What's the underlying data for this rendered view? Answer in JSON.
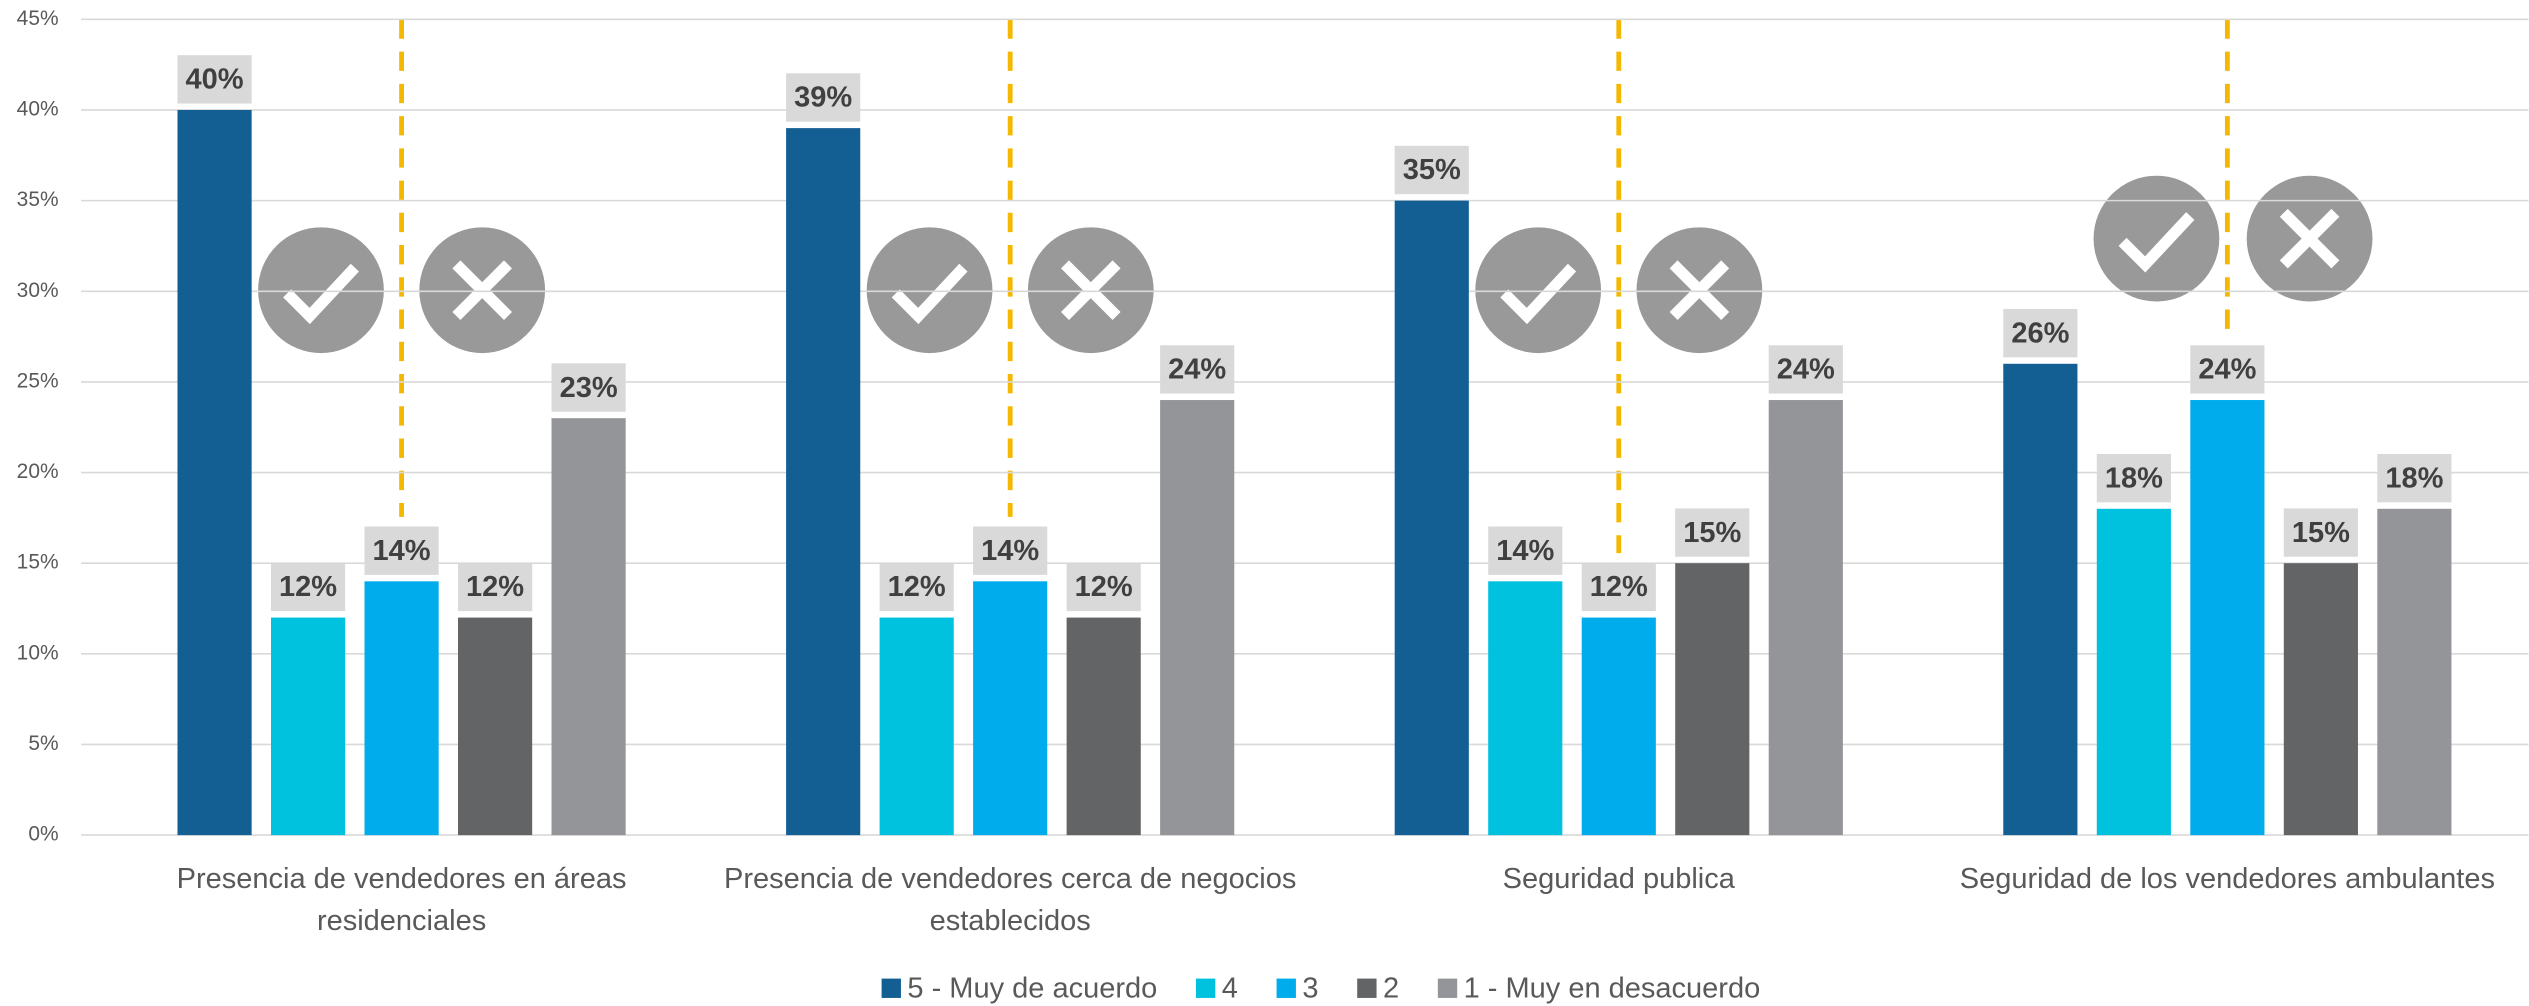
{
  "chart_data": {
    "type": "bar",
    "categories": [
      "Presencia de vendedores en áreas residenciales",
      "Presencia de vendedores cerca de negocios establecidos",
      "Seguridad publica",
      "Seguridad de los vendedores ambulantes"
    ],
    "series": [
      {
        "name": "5 - Muy de acuerdo",
        "color": "#135f94",
        "values": [
          40,
          39,
          35,
          26
        ],
        "value_labels": [
          "40%",
          "39%",
          "35%",
          "26%"
        ]
      },
      {
        "name": "4",
        "color": "#00c1de",
        "values": [
          12,
          12,
          14,
          18
        ],
        "value_labels": [
          "12%",
          "12%",
          "14%",
          "18%"
        ]
      },
      {
        "name": "3",
        "color": "#00aceb",
        "values": [
          14,
          14,
          12,
          24
        ],
        "value_labels": [
          "14%",
          "14%",
          "12%",
          "24%"
        ]
      },
      {
        "name": "2",
        "color": "#636466",
        "values": [
          12,
          12,
          15,
          15
        ],
        "value_labels": [
          "12%",
          "12%",
          "15%",
          "15%"
        ]
      },
      {
        "name": "1 - Muy en desacuerdo",
        "color": "#939598",
        "values": [
          23,
          24,
          24,
          18
        ],
        "value_labels": [
          "23%",
          "24%",
          "24%",
          "18%"
        ]
      }
    ],
    "ylim": [
      0,
      45
    ],
    "yticks": [
      {
        "value": 0,
        "label": "0%"
      },
      {
        "value": 5,
        "label": "5%"
      },
      {
        "value": 10,
        "label": "10%"
      },
      {
        "value": 15,
        "label": "15%"
      },
      {
        "value": 20,
        "label": "20%"
      },
      {
        "value": 25,
        "label": "25%"
      },
      {
        "value": 30,
        "label": "30%"
      },
      {
        "value": 35,
        "label": "35%"
      },
      {
        "value": 40,
        "label": "40%"
      },
      {
        "value": 45,
        "label": "45%"
      }
    ],
    "grid": true,
    "legend": "bottom"
  }
}
